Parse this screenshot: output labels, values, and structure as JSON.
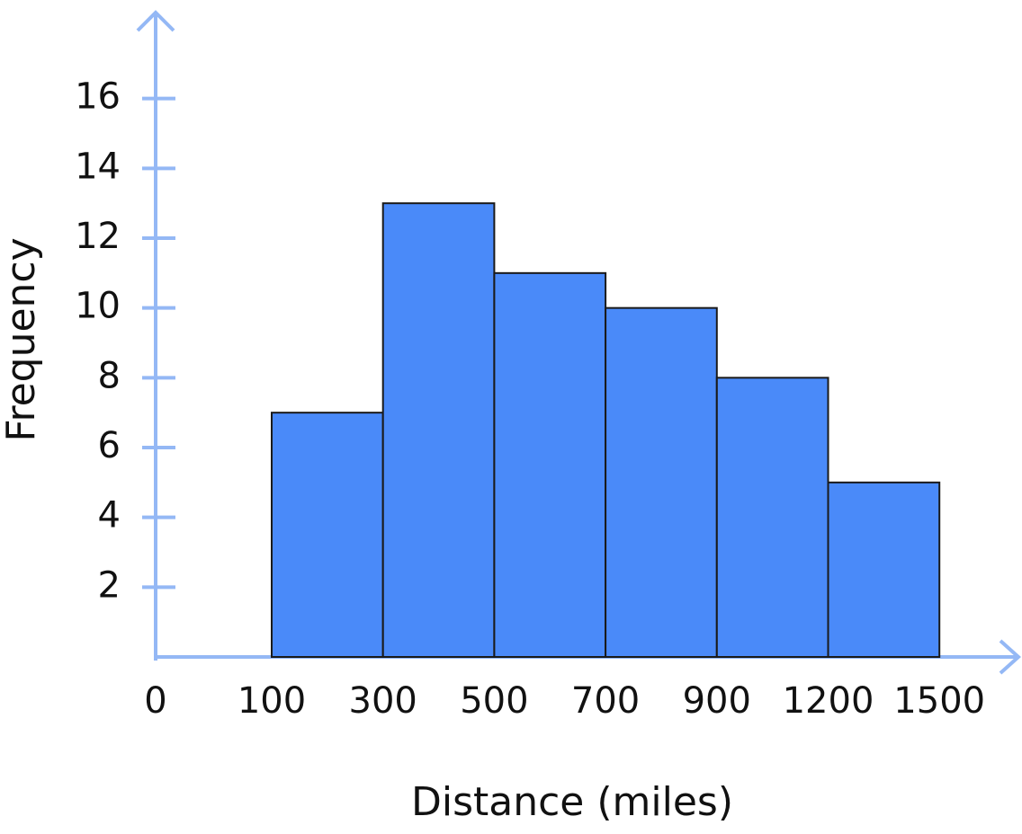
{
  "chart_data": {
    "type": "histogram",
    "xlabel": "Distance (miles)",
    "ylabel": "Frequency",
    "bins": [
      100,
      300,
      500,
      700,
      900,
      1200,
      1500
    ],
    "values": [
      7,
      13,
      11,
      10,
      8,
      5
    ],
    "color": "#4a8af9",
    "axis_color": "#94b8f5",
    "xlim": [
      0,
      1500
    ],
    "xticks": [
      0,
      100,
      300,
      500,
      700,
      900,
      1200,
      1500
    ],
    "ylim": [
      0,
      18
    ],
    "yticks": [
      2,
      4,
      6,
      8,
      10,
      12,
      14,
      16
    ],
    "grid": false
  }
}
